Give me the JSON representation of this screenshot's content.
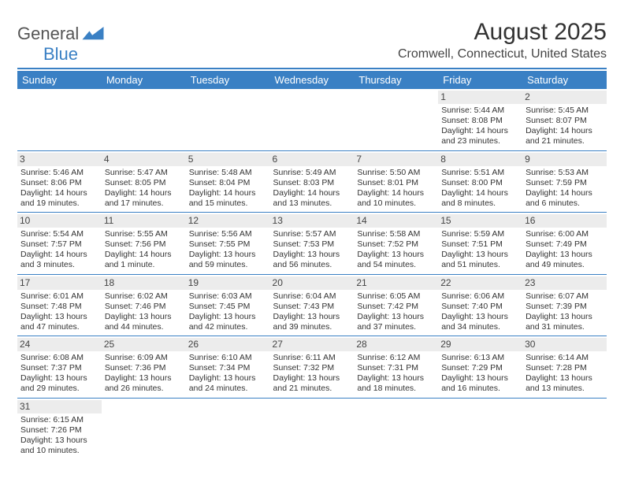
{
  "logo": {
    "part1": "General",
    "part2": "Blue"
  },
  "title": "August 2025",
  "location": "Cromwell, Connecticut, United States",
  "colors": {
    "header_bg": "#3a80c4",
    "header_text": "#ffffff",
    "rule": "#3a80c4",
    "daynum_bg": "#ececec",
    "text": "#333333"
  },
  "dow": [
    "Sunday",
    "Monday",
    "Tuesday",
    "Wednesday",
    "Thursday",
    "Friday",
    "Saturday"
  ],
  "weeks": [
    [
      null,
      null,
      null,
      null,
      null,
      {
        "n": "1",
        "sr": "Sunrise: 5:44 AM",
        "ss": "Sunset: 8:08 PM",
        "dl": "Daylight: 14 hours and 23 minutes."
      },
      {
        "n": "2",
        "sr": "Sunrise: 5:45 AM",
        "ss": "Sunset: 8:07 PM",
        "dl": "Daylight: 14 hours and 21 minutes."
      }
    ],
    [
      {
        "n": "3",
        "sr": "Sunrise: 5:46 AM",
        "ss": "Sunset: 8:06 PM",
        "dl": "Daylight: 14 hours and 19 minutes."
      },
      {
        "n": "4",
        "sr": "Sunrise: 5:47 AM",
        "ss": "Sunset: 8:05 PM",
        "dl": "Daylight: 14 hours and 17 minutes."
      },
      {
        "n": "5",
        "sr": "Sunrise: 5:48 AM",
        "ss": "Sunset: 8:04 PM",
        "dl": "Daylight: 14 hours and 15 minutes."
      },
      {
        "n": "6",
        "sr": "Sunrise: 5:49 AM",
        "ss": "Sunset: 8:03 PM",
        "dl": "Daylight: 14 hours and 13 minutes."
      },
      {
        "n": "7",
        "sr": "Sunrise: 5:50 AM",
        "ss": "Sunset: 8:01 PM",
        "dl": "Daylight: 14 hours and 10 minutes."
      },
      {
        "n": "8",
        "sr": "Sunrise: 5:51 AM",
        "ss": "Sunset: 8:00 PM",
        "dl": "Daylight: 14 hours and 8 minutes."
      },
      {
        "n": "9",
        "sr": "Sunrise: 5:53 AM",
        "ss": "Sunset: 7:59 PM",
        "dl": "Daylight: 14 hours and 6 minutes."
      }
    ],
    [
      {
        "n": "10",
        "sr": "Sunrise: 5:54 AM",
        "ss": "Sunset: 7:57 PM",
        "dl": "Daylight: 14 hours and 3 minutes."
      },
      {
        "n": "11",
        "sr": "Sunrise: 5:55 AM",
        "ss": "Sunset: 7:56 PM",
        "dl": "Daylight: 14 hours and 1 minute."
      },
      {
        "n": "12",
        "sr": "Sunrise: 5:56 AM",
        "ss": "Sunset: 7:55 PM",
        "dl": "Daylight: 13 hours and 59 minutes."
      },
      {
        "n": "13",
        "sr": "Sunrise: 5:57 AM",
        "ss": "Sunset: 7:53 PM",
        "dl": "Daylight: 13 hours and 56 minutes."
      },
      {
        "n": "14",
        "sr": "Sunrise: 5:58 AM",
        "ss": "Sunset: 7:52 PM",
        "dl": "Daylight: 13 hours and 54 minutes."
      },
      {
        "n": "15",
        "sr": "Sunrise: 5:59 AM",
        "ss": "Sunset: 7:51 PM",
        "dl": "Daylight: 13 hours and 51 minutes."
      },
      {
        "n": "16",
        "sr": "Sunrise: 6:00 AM",
        "ss": "Sunset: 7:49 PM",
        "dl": "Daylight: 13 hours and 49 minutes."
      }
    ],
    [
      {
        "n": "17",
        "sr": "Sunrise: 6:01 AM",
        "ss": "Sunset: 7:48 PM",
        "dl": "Daylight: 13 hours and 47 minutes."
      },
      {
        "n": "18",
        "sr": "Sunrise: 6:02 AM",
        "ss": "Sunset: 7:46 PM",
        "dl": "Daylight: 13 hours and 44 minutes."
      },
      {
        "n": "19",
        "sr": "Sunrise: 6:03 AM",
        "ss": "Sunset: 7:45 PM",
        "dl": "Daylight: 13 hours and 42 minutes."
      },
      {
        "n": "20",
        "sr": "Sunrise: 6:04 AM",
        "ss": "Sunset: 7:43 PM",
        "dl": "Daylight: 13 hours and 39 minutes."
      },
      {
        "n": "21",
        "sr": "Sunrise: 6:05 AM",
        "ss": "Sunset: 7:42 PM",
        "dl": "Daylight: 13 hours and 37 minutes."
      },
      {
        "n": "22",
        "sr": "Sunrise: 6:06 AM",
        "ss": "Sunset: 7:40 PM",
        "dl": "Daylight: 13 hours and 34 minutes."
      },
      {
        "n": "23",
        "sr": "Sunrise: 6:07 AM",
        "ss": "Sunset: 7:39 PM",
        "dl": "Daylight: 13 hours and 31 minutes."
      }
    ],
    [
      {
        "n": "24",
        "sr": "Sunrise: 6:08 AM",
        "ss": "Sunset: 7:37 PM",
        "dl": "Daylight: 13 hours and 29 minutes."
      },
      {
        "n": "25",
        "sr": "Sunrise: 6:09 AM",
        "ss": "Sunset: 7:36 PM",
        "dl": "Daylight: 13 hours and 26 minutes."
      },
      {
        "n": "26",
        "sr": "Sunrise: 6:10 AM",
        "ss": "Sunset: 7:34 PM",
        "dl": "Daylight: 13 hours and 24 minutes."
      },
      {
        "n": "27",
        "sr": "Sunrise: 6:11 AM",
        "ss": "Sunset: 7:32 PM",
        "dl": "Daylight: 13 hours and 21 minutes."
      },
      {
        "n": "28",
        "sr": "Sunrise: 6:12 AM",
        "ss": "Sunset: 7:31 PM",
        "dl": "Daylight: 13 hours and 18 minutes."
      },
      {
        "n": "29",
        "sr": "Sunrise: 6:13 AM",
        "ss": "Sunset: 7:29 PM",
        "dl": "Daylight: 13 hours and 16 minutes."
      },
      {
        "n": "30",
        "sr": "Sunrise: 6:14 AM",
        "ss": "Sunset: 7:28 PM",
        "dl": "Daylight: 13 hours and 13 minutes."
      }
    ],
    [
      {
        "n": "31",
        "sr": "Sunrise: 6:15 AM",
        "ss": "Sunset: 7:26 PM",
        "dl": "Daylight: 13 hours and 10 minutes."
      },
      null,
      null,
      null,
      null,
      null,
      null
    ]
  ]
}
